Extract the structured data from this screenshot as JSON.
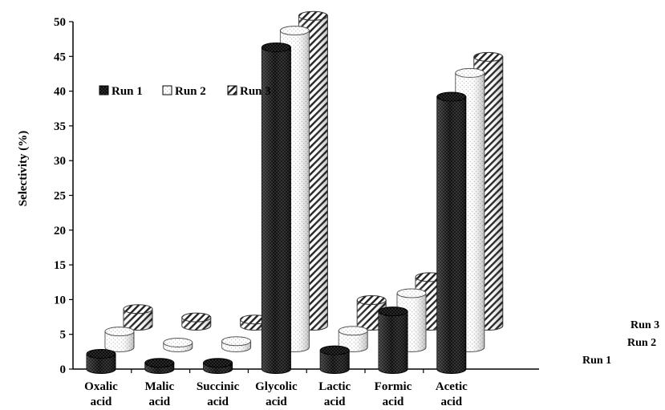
{
  "chart_data": {
    "type": "bar",
    "title": "",
    "xlabel": "",
    "ylabel": "Selectivity (%)",
    "ylim": [
      0,
      50
    ],
    "yticks": [
      0,
      5,
      10,
      15,
      20,
      25,
      30,
      35,
      40,
      45,
      50
    ],
    "grid": false,
    "legend_position": "upper-left",
    "depth_axis_labels": [
      "Run 1",
      "Run 2",
      "Run 3"
    ],
    "categories": [
      [
        "Oxalic",
        "acid"
      ],
      [
        "Malic",
        "acid"
      ],
      [
        "Succinic",
        "acid"
      ],
      [
        "Glycolic",
        "acid"
      ],
      [
        "Lactic",
        "acid"
      ],
      [
        "Formic",
        "acid"
      ],
      [
        "Acetic",
        "acid"
      ]
    ],
    "series": [
      {
        "name": "Run 1",
        "pattern": "dots-black",
        "values": [
          2.2,
          0.9,
          0.9,
          46.3,
          2.7,
          8.3,
          39.2
        ]
      },
      {
        "name": "Run 2",
        "pattern": "dots-white",
        "values": [
          2.3,
          0.7,
          0.9,
          45.6,
          2.4,
          7.8,
          39.5
        ]
      },
      {
        "name": "Run 3",
        "pattern": "hatch",
        "values": [
          2.4,
          1.2,
          0.9,
          44.6,
          3.7,
          7.0,
          38.7
        ]
      }
    ]
  }
}
